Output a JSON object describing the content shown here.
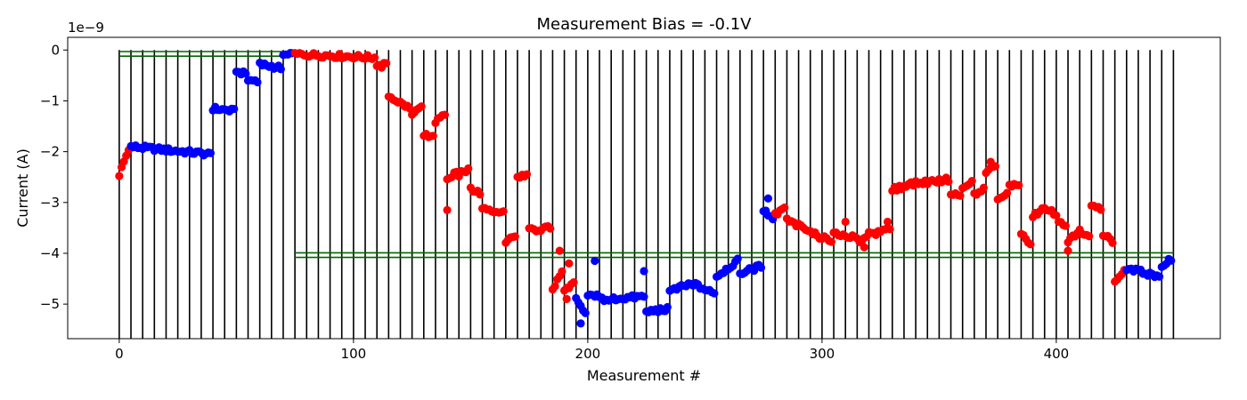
{
  "chart_data": {
    "type": "scatter",
    "title": "Measurement Bias = -0.1V",
    "xlabel": "Measurement #",
    "ylabel": "Current (A)",
    "offset_text": "1e−9",
    "xlim": [
      -22,
      470
    ],
    "ylim": [
      -5.68,
      0.25
    ],
    "x_ticks": [
      0,
      100,
      200,
      300,
      400
    ],
    "x_tick_labels": [
      "0",
      "100",
      "200",
      "300",
      "400"
    ],
    "y_ticks": [
      0,
      -1,
      -2,
      -3,
      -4,
      -5
    ],
    "y_tick_labels": [
      "0",
      "−1",
      "−2",
      "−3",
      "−4",
      "−5"
    ],
    "grid": false,
    "legend": "none",
    "colors": {
      "red": "#ff0000",
      "blue": "#0000ff",
      "boundary": "#000000",
      "limit": "#006400"
    },
    "vlines": [
      0,
      5,
      10,
      15,
      20,
      25,
      30,
      35,
      40,
      45,
      50,
      55,
      60,
      65,
      70,
      75,
      80,
      85,
      90,
      95,
      100,
      105,
      110,
      115,
      120,
      125,
      130,
      135,
      140,
      145,
      150,
      155,
      160,
      165,
      170,
      175,
      180,
      185,
      190,
      195,
      200,
      205,
      210,
      215,
      220,
      225,
      230,
      235,
      240,
      245,
      250,
      255,
      260,
      265,
      270,
      275,
      280,
      285,
      290,
      295,
      300,
      305,
      310,
      315,
      320,
      325,
      330,
      335,
      340,
      345,
      350,
      355,
      360,
      365,
      370,
      375,
      380,
      385,
      390,
      395,
      400,
      405,
      410,
      415,
      420,
      425,
      430,
      435,
      440,
      445,
      450
    ],
    "vline_range": [
      -5.68,
      0
    ],
    "hlines": [
      {
        "x0": 0,
        "x1": 75,
        "y": -0.03
      },
      {
        "x0": 0,
        "x1": 75,
        "y": -0.12
      },
      {
        "x0": 75,
        "x1": 450,
        "y": -3.99
      },
      {
        "x0": 75,
        "x1": 450,
        "y": -4.08
      }
    ],
    "segments": [
      {
        "series": "red",
        "x": [
          0,
          5
        ],
        "y": [
          -2.45,
          -1.95
        ]
      },
      {
        "series": "blue",
        "x": [
          5,
          40
        ],
        "y": [
          -1.9,
          -2.05
        ]
      },
      {
        "series": "blue",
        "x": [
          40,
          50
        ],
        "y": [
          -1.15,
          -1.2
        ]
      },
      {
        "series": "blue",
        "x": [
          50,
          55
        ],
        "y": [
          -0.42,
          -0.45
        ]
      },
      {
        "series": "blue",
        "x": [
          55,
          60
        ],
        "y": [
          -0.62,
          -0.6
        ]
      },
      {
        "series": "blue",
        "x": [
          60,
          70
        ],
        "y": [
          -0.28,
          -0.35
        ]
      },
      {
        "series": "blue",
        "x": [
          70,
          75
        ],
        "y": [
          -0.1,
          -0.1
        ]
      },
      {
        "series": "red",
        "x": [
          75,
          110
        ],
        "y": [
          -0.08,
          -0.15
        ]
      },
      {
        "series": "red",
        "x": [
          110,
          115
        ],
        "y": [
          -0.35,
          -0.28
        ]
      },
      {
        "series": "red",
        "x": [
          115,
          125
        ],
        "y": [
          -0.9,
          -1.15
        ]
      },
      {
        "series": "red",
        "x": [
          125,
          130
        ],
        "y": [
          -1.3,
          -1.1
        ]
      },
      {
        "series": "red",
        "x": [
          130,
          135
        ],
        "y": [
          -1.7,
          -1.65
        ]
      },
      {
        "series": "red",
        "x": [
          135,
          140
        ],
        "y": [
          -1.4,
          -1.3
        ]
      },
      {
        "series": "red",
        "x": [
          140,
          145
        ],
        "y": [
          -2.55,
          -2.4
        ]
      },
      {
        "series": "red",
        "x": [
          145,
          150
        ],
        "y": [
          -2.45,
          -2.35
        ]
      },
      {
        "series": "red",
        "x": [
          150,
          155
        ],
        "y": [
          -2.7,
          -2.85
        ]
      },
      {
        "series": "red",
        "x": [
          155,
          165
        ],
        "y": [
          -3.1,
          -3.2
        ]
      },
      {
        "series": "red",
        "x": [
          165,
          170
        ],
        "y": [
          -3.8,
          -3.65
        ]
      },
      {
        "series": "red",
        "x": [
          170,
          175
        ],
        "y": [
          -2.5,
          -2.45
        ]
      },
      {
        "series": "red",
        "x": [
          175,
          185
        ],
        "y": [
          -3.55,
          -3.5
        ]
      },
      {
        "series": "red",
        "x": [
          185,
          190
        ],
        "y": [
          -4.7,
          -4.4
        ]
      },
      {
        "series": "red",
        "x": [
          190,
          195
        ],
        "y": [
          -4.7,
          -4.6
        ]
      },
      {
        "series": "blue",
        "x": [
          195,
          200
        ],
        "y": [
          -4.9,
          -5.2
        ]
      },
      {
        "series": "blue",
        "x": [
          200,
          205
        ],
        "y": [
          -4.85,
          -4.8
        ]
      },
      {
        "series": "blue",
        "x": [
          205,
          210
        ],
        "y": [
          -4.9,
          -4.95
        ]
      },
      {
        "series": "blue",
        "x": [
          210,
          225
        ],
        "y": [
          -4.9,
          -4.85
        ]
      },
      {
        "series": "blue",
        "x": [
          225,
          235
        ],
        "y": [
          -5.15,
          -5.1
        ]
      },
      {
        "series": "blue",
        "x": [
          235,
          245
        ],
        "y": [
          -4.75,
          -4.6
        ]
      },
      {
        "series": "blue",
        "x": [
          245,
          255
        ],
        "y": [
          -4.6,
          -4.8
        ]
      },
      {
        "series": "blue",
        "x": [
          255,
          265
        ],
        "y": [
          -4.45,
          -4.15
        ]
      },
      {
        "series": "blue",
        "x": [
          265,
          275
        ],
        "y": [
          -4.4,
          -4.25
        ]
      },
      {
        "series": "blue",
        "x": [
          275,
          280
        ],
        "y": [
          -3.15,
          -3.3
        ]
      },
      {
        "series": "red",
        "x": [
          280,
          285
        ],
        "y": [
          -3.25,
          -3.1
        ]
      },
      {
        "series": "red",
        "x": [
          285,
          295
        ],
        "y": [
          -3.35,
          -3.55
        ]
      },
      {
        "series": "red",
        "x": [
          295,
          305
        ],
        "y": [
          -3.6,
          -3.75
        ]
      },
      {
        "series": "red",
        "x": [
          305,
          315
        ],
        "y": [
          -3.6,
          -3.7
        ]
      },
      {
        "series": "red",
        "x": [
          315,
          320
        ],
        "y": [
          -3.75,
          -3.7
        ]
      },
      {
        "series": "red",
        "x": [
          320,
          325
        ],
        "y": [
          -3.6,
          -3.6
        ]
      },
      {
        "series": "red",
        "x": [
          325,
          330
        ],
        "y": [
          -3.55,
          -3.5
        ]
      },
      {
        "series": "red",
        "x": [
          330,
          335
        ],
        "y": [
          -2.75,
          -2.7
        ]
      },
      {
        "series": "red",
        "x": [
          335,
          355
        ],
        "y": [
          -2.65,
          -2.55
        ]
      },
      {
        "series": "red",
        "x": [
          355,
          360
        ],
        "y": [
          -2.85,
          -2.85
        ]
      },
      {
        "series": "red",
        "x": [
          360,
          365
        ],
        "y": [
          -2.75,
          -2.6
        ]
      },
      {
        "series": "red",
        "x": [
          365,
          370
        ],
        "y": [
          -2.85,
          -2.75
        ]
      },
      {
        "series": "red",
        "x": [
          370,
          375
        ],
        "y": [
          -2.4,
          -2.3
        ]
      },
      {
        "series": "red",
        "x": [
          375,
          380
        ],
        "y": [
          -2.9,
          -2.85
        ]
      },
      {
        "series": "red",
        "x": [
          380,
          385
        ],
        "y": [
          -2.65,
          -2.65
        ]
      },
      {
        "series": "red",
        "x": [
          385,
          390
        ],
        "y": [
          -3.6,
          -3.85
        ]
      },
      {
        "series": "red",
        "x": [
          390,
          395
        ],
        "y": [
          -3.25,
          -3.15
        ]
      },
      {
        "series": "red",
        "x": [
          395,
          400
        ],
        "y": [
          -3.15,
          -3.2
        ]
      },
      {
        "series": "red",
        "x": [
          400,
          405
        ],
        "y": [
          -3.3,
          -3.5
        ]
      },
      {
        "series": "red",
        "x": [
          405,
          410
        ],
        "y": [
          -3.75,
          -3.6
        ]
      },
      {
        "series": "red",
        "x": [
          410,
          415
        ],
        "y": [
          -3.55,
          -3.65
        ]
      },
      {
        "series": "red",
        "x": [
          415,
          420
        ],
        "y": [
          -3.05,
          -3.1
        ]
      },
      {
        "series": "red",
        "x": [
          420,
          425
        ],
        "y": [
          -3.65,
          -3.75
        ]
      },
      {
        "series": "red",
        "x": [
          425,
          430
        ],
        "y": [
          -4.55,
          -4.35
        ]
      },
      {
        "series": "blue",
        "x": [
          430,
          445
        ],
        "y": [
          -4.3,
          -4.45
        ]
      },
      {
        "series": "blue",
        "x": [
          445,
          450
        ],
        "y": [
          -4.25,
          -4.1
        ]
      }
    ],
    "extra_points": [
      {
        "series": "red",
        "x": 140,
        "y": -3.15
      },
      {
        "series": "blue",
        "x": 203,
        "y": -4.15
      },
      {
        "series": "blue",
        "x": 224,
        "y": -4.35
      },
      {
        "series": "blue",
        "x": 277,
        "y": -2.92
      },
      {
        "series": "red",
        "x": 310,
        "y": -3.38
      },
      {
        "series": "red",
        "x": 318,
        "y": -3.88
      },
      {
        "series": "red",
        "x": 328,
        "y": -3.38
      },
      {
        "series": "red",
        "x": 372,
        "y": -2.2
      },
      {
        "series": "red",
        "x": 405,
        "y": -3.95
      },
      {
        "series": "red",
        "x": 188,
        "y": -3.95
      },
      {
        "series": "red",
        "x": 192,
        "y": -4.2
      },
      {
        "series": "red",
        "x": 191,
        "y": -4.9
      },
      {
        "series": "blue",
        "x": 197,
        "y": -5.38
      }
    ]
  }
}
